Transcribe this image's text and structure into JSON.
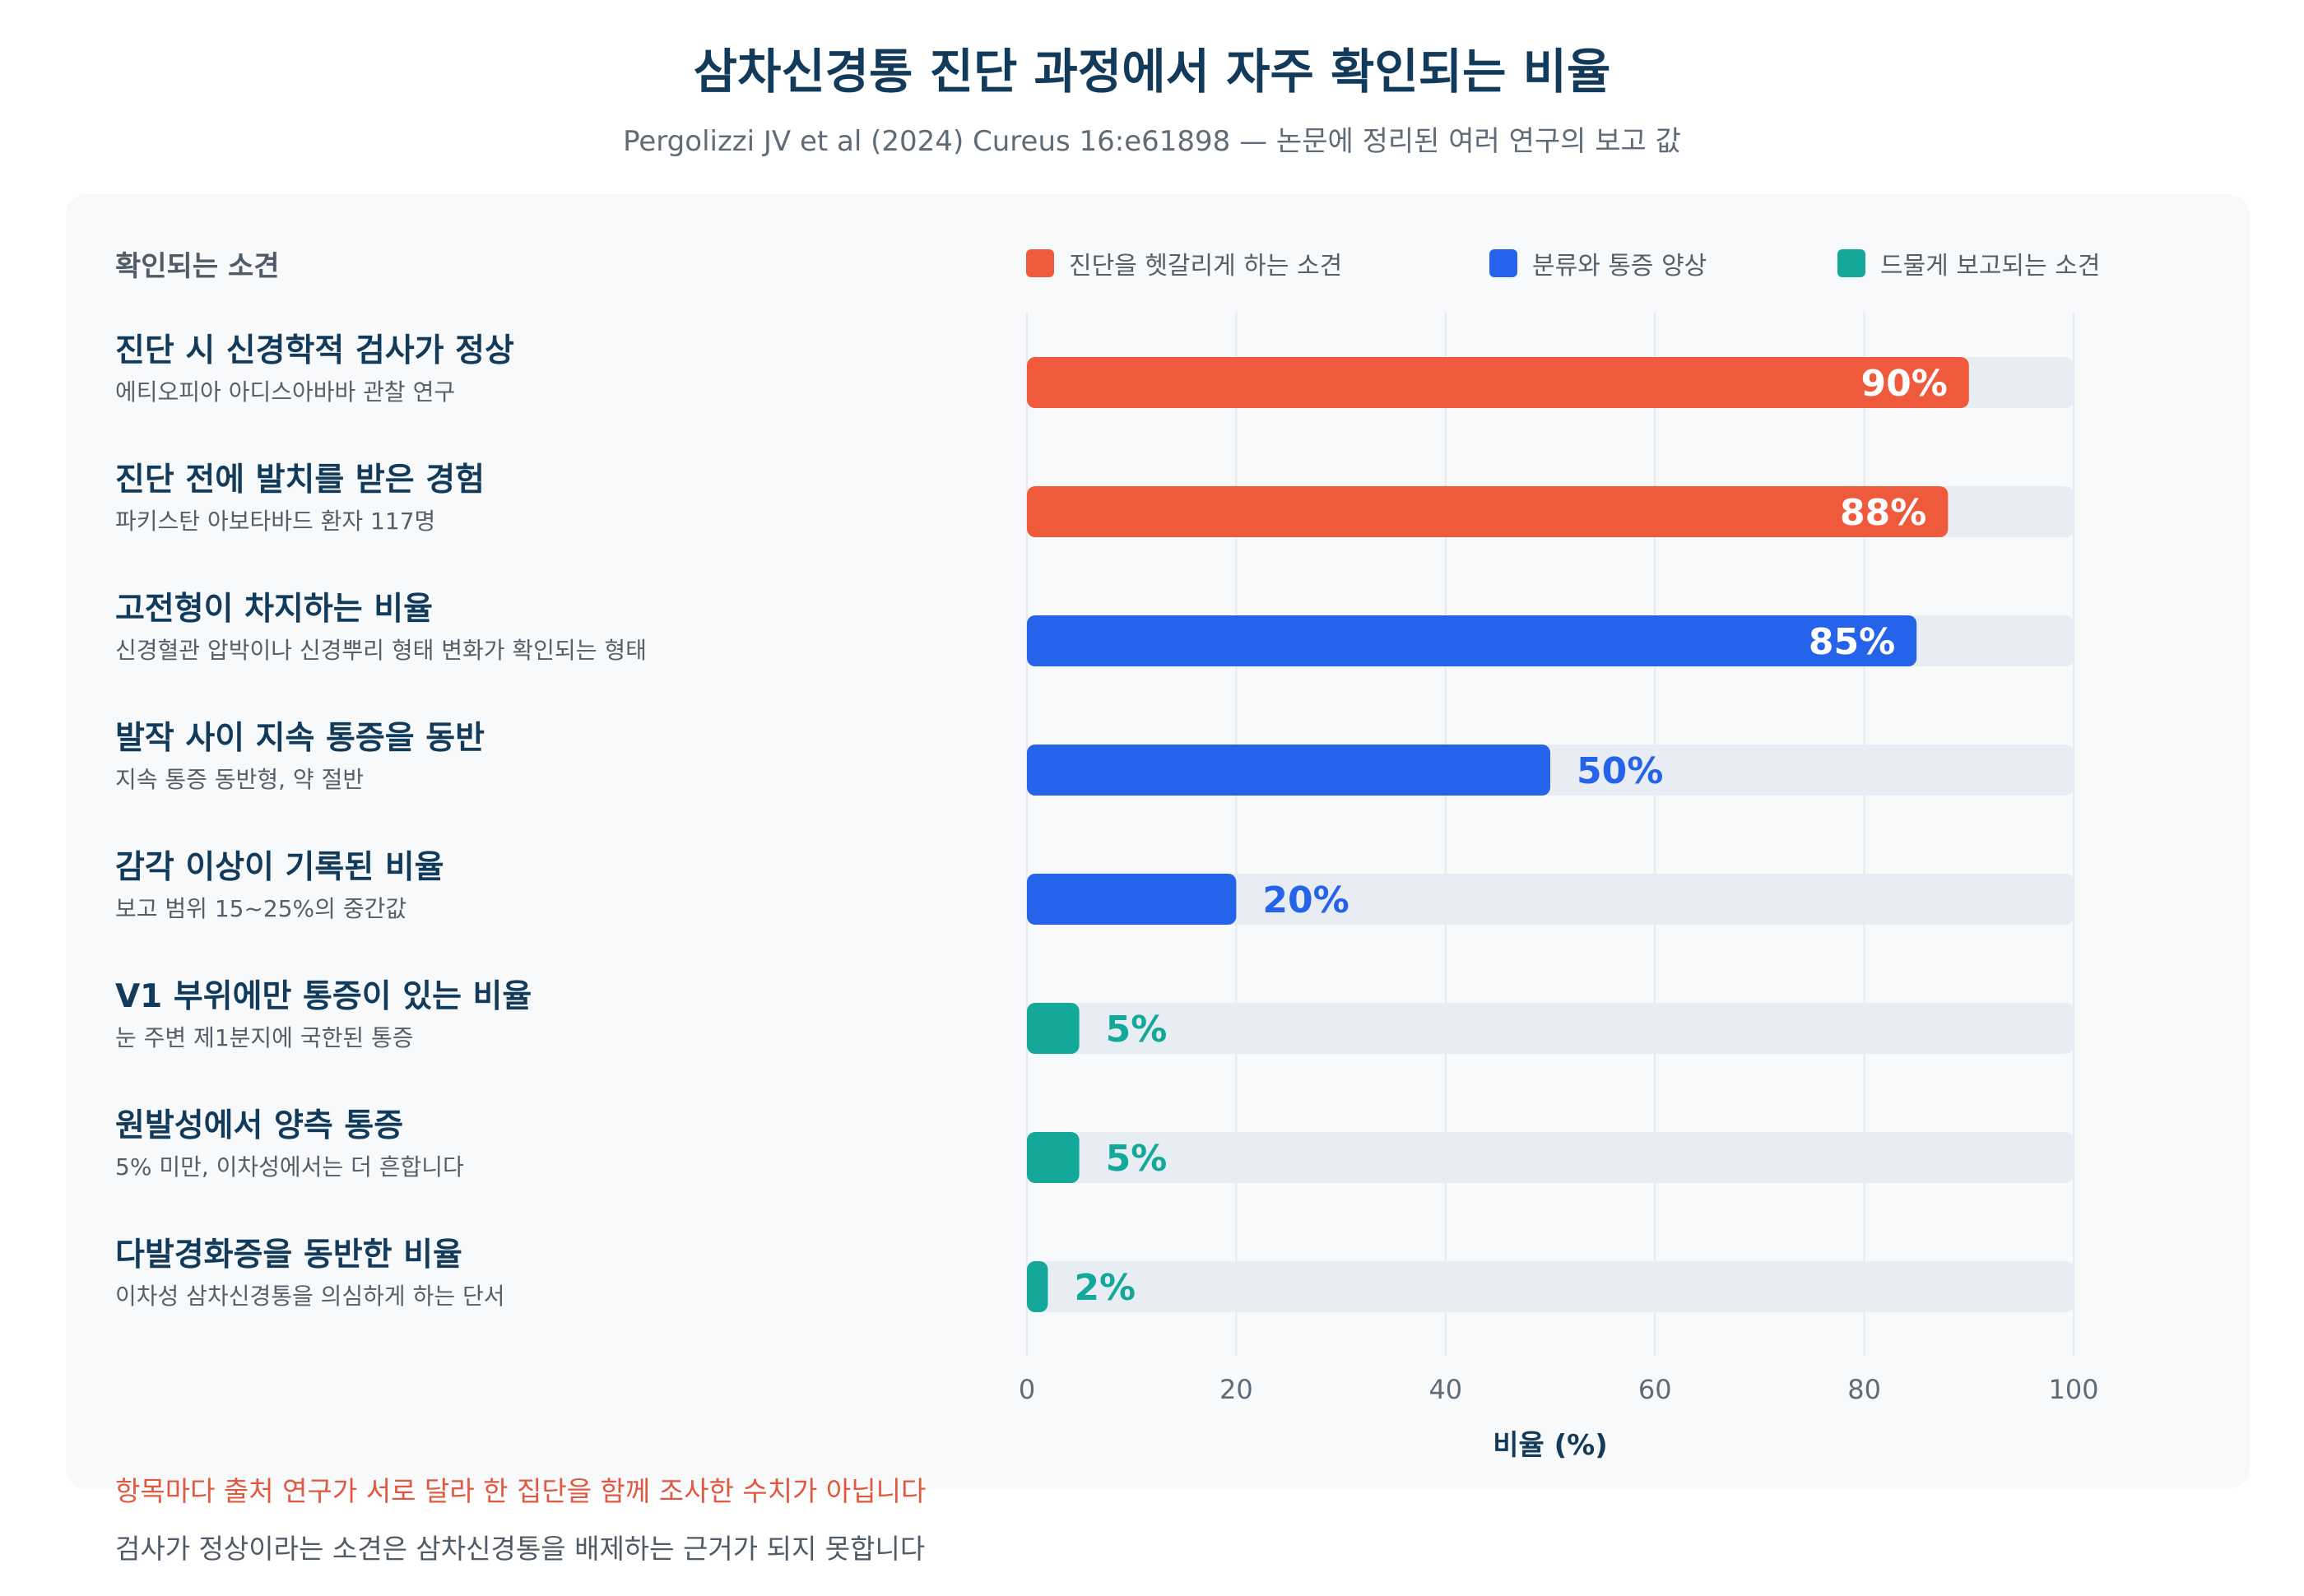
{
  "header": {
    "title": "삼차신경통 진단 과정에서 자주 확인되는 비율",
    "subtitle": "Pergolizzi JV et al (2024) Cureus 16:e61898 — 논문에 정리된 여러 연구의 보고 값"
  },
  "column_header": "확인되는 소견",
  "colors": {
    "diagnostic_confusion": "#ef5a3c",
    "classification": "#2563eb",
    "rare": "#14a89b",
    "track": "#e8edf3",
    "title": "#123a5a"
  },
  "chart_data": {
    "type": "bar",
    "orientation": "horizontal",
    "title": "삼차신경통 진단 과정에서 자주 확인되는 비율",
    "subtitle": "Pergolizzi JV et al (2024) Cureus 16:e61898 — 논문에 정리된 여러 연구의 보고 값",
    "xlabel": "비율 (%)",
    "xlim": [
      0,
      100
    ],
    "xticks": [
      0,
      20,
      40,
      60,
      80,
      100
    ],
    "grid": true,
    "legend": [
      {
        "label": "진단을 헷갈리게 하는 소견",
        "color": "#ef5a3c"
      },
      {
        "label": "분류와 통증 양상",
        "color": "#2563eb"
      },
      {
        "label": "드물게 보고되는 소견",
        "color": "#14a89b"
      }
    ],
    "bars": [
      {
        "label": "진단 시 신경학적 검사가 정상",
        "note": "에티오피아 아디스아바바 관찰 연구",
        "value": 90,
        "value_label": "90%",
        "group": 0
      },
      {
        "label": "진단 전에 발치를 받은 경험",
        "note": "파키스탄 아보타바드 환자 117명",
        "value": 88,
        "value_label": "88%",
        "group": 0
      },
      {
        "label": "고전형이 차지하는 비율",
        "note": "신경혈관 압박이나 신경뿌리 형태 변화가 확인되는 형태",
        "value": 85,
        "value_label": "85%",
        "group": 1
      },
      {
        "label": "발작 사이 지속 통증을 동반",
        "note": "지속 통증 동반형, 약 절반",
        "value": 50,
        "value_label": "50%",
        "group": 1
      },
      {
        "label": "감각 이상이 기록된 비율",
        "note": "보고 범위 15~25%의 중간값",
        "value": 20,
        "value_label": "20%",
        "group": 1
      },
      {
        "label": "V1 부위에만 통증이 있는 비율",
        "note": "눈 주변 제1분지에 국한된 통증",
        "value": 5,
        "value_label": "5%",
        "group": 2
      },
      {
        "label": "원발성에서 양측 통증",
        "note": "5% 미만, 이차성에서는 더 흔합니다",
        "value": 5,
        "value_label": "5%",
        "group": 2
      },
      {
        "label": "다발경화증을 동반한 비율",
        "note": "이차성 삼차신경통을 의심하게 하는 단서",
        "value": 2,
        "value_label": "2%",
        "group": 2
      }
    ]
  },
  "notes": {
    "warning": "항목마다 출처 연구가 서로 달라 한 집단을 함께 조사한 수치가 아닙니다",
    "caveat": "검사가 정상이라는 소견은 삼차신경통을 배제하는 근거가 되지 못합니다"
  }
}
